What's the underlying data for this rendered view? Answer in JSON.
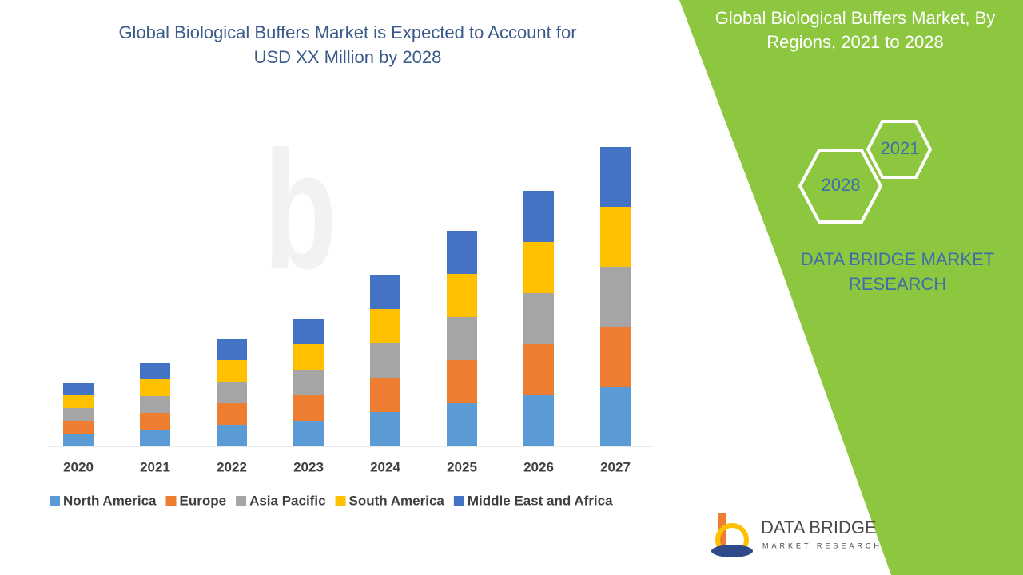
{
  "chart_data": {
    "type": "bar",
    "stacked": true,
    "title": [
      "Global Biological Buffers Market is Expected to Account for",
      "USD XX Million by 2028"
    ],
    "categories": [
      "2020",
      "2021",
      "2022",
      "2023",
      "2024",
      "2025",
      "2026",
      "2027"
    ],
    "series": [
      {
        "name": "North America",
        "color": "#5b9bd5",
        "values": [
          16,
          21,
          27,
          32,
          43,
          54,
          64,
          75
        ]
      },
      {
        "name": "Europe",
        "color": "#ed7d31",
        "values": [
          16,
          21,
          27,
          32,
          43,
          54,
          64,
          75
        ]
      },
      {
        "name": "Asia Pacific",
        "color": "#a5a5a5",
        "values": [
          16,
          21,
          27,
          32,
          43,
          54,
          64,
          75
        ]
      },
      {
        "name": "South America",
        "color": "#ffc000",
        "values": [
          16,
          21,
          27,
          32,
          43,
          54,
          64,
          75
        ]
      },
      {
        "name": "Middle East and Africa",
        "color": "#4472c4",
        "values": [
          16,
          21,
          27,
          32,
          43,
          54,
          64,
          75
        ]
      }
    ],
    "ylim": [
      0,
      400
    ],
    "legend": "bottom"
  },
  "panel": {
    "title": [
      "Global Biological Buffers Market, By",
      "Regions, 2021 to 2028"
    ],
    "hex_labels": [
      "2021",
      "2028"
    ],
    "brand": [
      "DATA BRIDGE MARKET",
      "RESEARCH"
    ]
  },
  "logo": {
    "name": "DATA BRIDGE",
    "tagline": "MARKET RESEARCH"
  }
}
